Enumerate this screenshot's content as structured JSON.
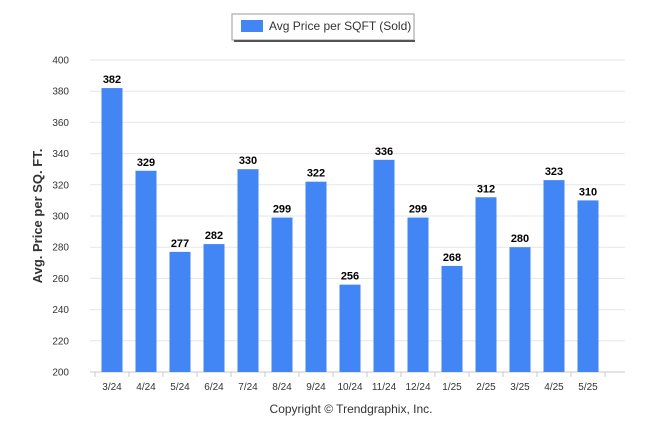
{
  "chart_data": {
    "type": "bar",
    "categories": [
      "3/24",
      "4/24",
      "5/24",
      "6/24",
      "7/24",
      "8/24",
      "9/24",
      "10/24",
      "11/24",
      "12/24",
      "1/25",
      "2/25",
      "3/25",
      "4/25",
      "5/25"
    ],
    "series": [
      {
        "name": "Avg Price per SQFT (Sold)",
        "values": [
          382,
          329,
          277,
          282,
          330,
          299,
          322,
          256,
          336,
          299,
          268,
          312,
          280,
          323,
          310
        ],
        "color": "#4285f4"
      }
    ],
    "ylabel": "Avg. Price per SQ. FT.",
    "xlabel": "",
    "ylim": [
      200,
      400
    ],
    "yticks": [
      200,
      220,
      240,
      260,
      280,
      300,
      320,
      340,
      360,
      380,
      400
    ],
    "grid": true,
    "legend_position": "top-center",
    "footer": "Copyright © Trendgraphix, Inc."
  }
}
